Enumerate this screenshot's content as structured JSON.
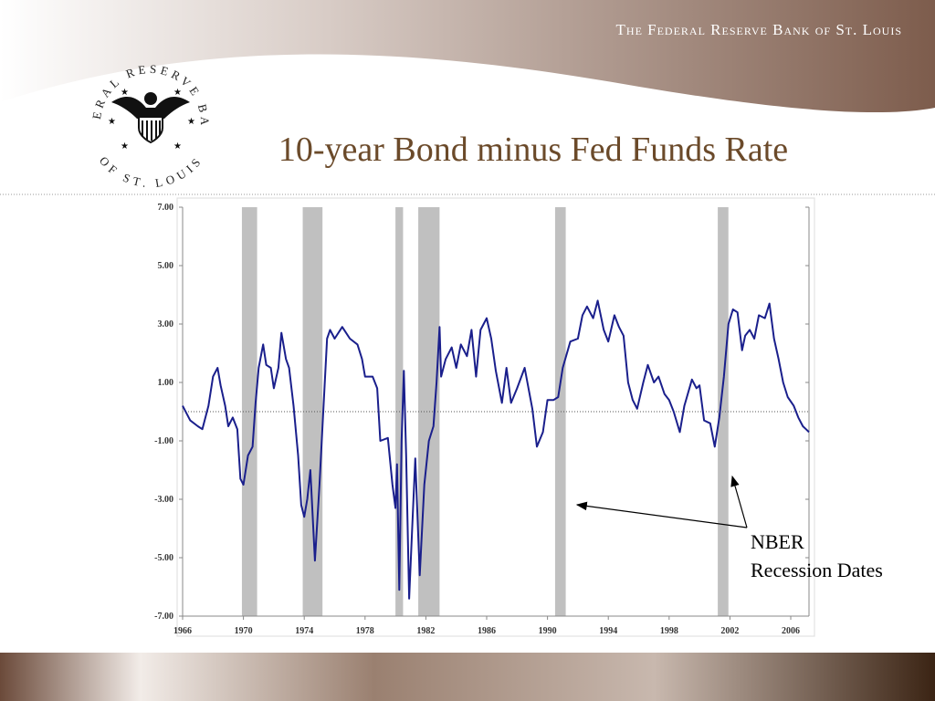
{
  "header": {
    "organization": "The Federal Reserve Bank of St. Louis",
    "logo_top": "FEDERAL RESERVE BANK",
    "logo_bottom": "OF ST. LOUIS"
  },
  "chart_data": {
    "type": "line",
    "title": "10-year Bond minus Fed Funds Rate",
    "x": [
      1966,
      1966.5,
      1967,
      1967.3,
      1967.7,
      1968,
      1968.3,
      1968.5,
      1968.8,
      1969,
      1969.3,
      1969.6,
      1969.8,
      1970,
      1970.3,
      1970.6,
      1970.8,
      1971,
      1971.3,
      1971.5,
      1971.8,
      1972,
      1972.3,
      1972.5,
      1972.8,
      1973,
      1973.3,
      1973.6,
      1973.8,
      1974,
      1974.2,
      1974.4,
      1974.7,
      1975,
      1975.2,
      1975.5,
      1975.7,
      1976,
      1976.5,
      1977,
      1977.5,
      1977.8,
      1978,
      1978.5,
      1978.8,
      1979,
      1979.5,
      1979.8,
      1980,
      1980.1,
      1980.25,
      1980.4,
      1980.55,
      1980.7,
      1980.9,
      1981.1,
      1981.3,
      1981.6,
      1981.9,
      1982.2,
      1982.5,
      1982.7,
      1982.9,
      1983,
      1983.3,
      1983.7,
      1984,
      1984.3,
      1984.7,
      1985,
      1985.3,
      1985.6,
      1986,
      1986.3,
      1986.6,
      1987,
      1987.3,
      1987.6,
      1988,
      1988.5,
      1989,
      1989.3,
      1989.7,
      1990,
      1990.4,
      1990.7,
      1991,
      1991.5,
      1992,
      1992.3,
      1992.6,
      1993,
      1993.3,
      1993.7,
      1994,
      1994.4,
      1994.7,
      1995,
      1995.3,
      1995.6,
      1995.9,
      1996.3,
      1996.6,
      1997,
      1997.3,
      1997.7,
      1998,
      1998.3,
      1998.7,
      1999,
      1999.5,
      1999.8,
      2000,
      2000.3,
      2000.7,
      2001,
      2001.3,
      2001.6,
      2001.9,
      2002.2,
      2002.5,
      2002.8,
      2003,
      2003.3,
      2003.6,
      2003.9,
      2004.3,
      2004.6,
      2004.9,
      2005.2,
      2005.5,
      2005.8,
      2006.2,
      2006.5,
      2006.8,
      2007,
      2007.2
    ],
    "values": [
      0.2,
      -0.3,
      -0.5,
      -0.6,
      0.2,
      1.2,
      1.5,
      0.9,
      0.2,
      -0.5,
      -0.2,
      -0.6,
      -2.3,
      -2.5,
      -1.5,
      -1.2,
      0.3,
      1.5,
      2.3,
      1.6,
      1.5,
      0.8,
      1.5,
      2.7,
      1.8,
      1.5,
      0.2,
      -1.5,
      -3.2,
      -3.6,
      -3.0,
      -2.0,
      -5.1,
      -2.5,
      -0.5,
      2.5,
      2.8,
      2.5,
      2.9,
      2.5,
      2.3,
      1.8,
      1.2,
      1.2,
      0.8,
      -1.0,
      -0.9,
      -2.5,
      -3.3,
      -1.8,
      -6.1,
      -1.0,
      1.4,
      -1.5,
      -6.4,
      -4.0,
      -1.6,
      -5.6,
      -2.5,
      -1.0,
      -0.5,
      1.0,
      2.9,
      1.2,
      1.8,
      2.2,
      1.5,
      2.3,
      1.9,
      2.8,
      1.2,
      2.8,
      3.2,
      2.5,
      1.4,
      0.3,
      1.5,
      0.3,
      0.8,
      1.5,
      0.1,
      -1.2,
      -0.7,
      0.4,
      0.4,
      0.5,
      1.5,
      2.4,
      2.5,
      3.3,
      3.6,
      3.2,
      3.8,
      2.8,
      2.4,
      3.3,
      2.9,
      2.6,
      1.0,
      0.4,
      0.1,
      1.0,
      1.6,
      1.0,
      1.2,
      0.6,
      0.4,
      0.0,
      -0.7,
      0.2,
      1.1,
      0.8,
      0.9,
      -0.3,
      -0.4,
      -1.2,
      -0.2,
      1.2,
      3.0,
      3.5,
      3.4,
      2.1,
      2.6,
      2.8,
      2.5,
      3.3,
      3.2,
      3.7,
      2.5,
      1.8,
      1.0,
      0.5,
      0.2,
      -0.2,
      -0.5,
      -0.6,
      -0.7
    ],
    "color": "#1a1f8c",
    "recessions": [
      [
        1969.9,
        1970.9
      ],
      [
        1973.9,
        1975.2
      ],
      [
        1980.0,
        1980.5
      ],
      [
        1981.5,
        1982.9
      ],
      [
        1990.5,
        1991.2
      ],
      [
        2001.2,
        2001.9
      ]
    ],
    "recession_color": "#c0c0c0",
    "reference_line": 0,
    "xlim": [
      1966,
      2007.2
    ],
    "ylim": [
      -7,
      7
    ],
    "xticks": [
      1966,
      1970,
      1974,
      1978,
      1982,
      1986,
      1990,
      1994,
      1998,
      2002,
      2006
    ],
    "yticks": [
      {
        "value": 7,
        "label": "7.00"
      },
      {
        "value": 5,
        "label": "5.00"
      },
      {
        "value": 3,
        "label": "3.00"
      },
      {
        "value": 1,
        "label": "1.00"
      },
      {
        "value": -1,
        "label": "-1.00"
      },
      {
        "value": -3,
        "label": "-3.00"
      },
      {
        "value": -5,
        "label": "-5.00"
      },
      {
        "value": -7,
        "label": "-7.00"
      }
    ],
    "annotation": [
      "NBER",
      "Recession Dates"
    ]
  }
}
